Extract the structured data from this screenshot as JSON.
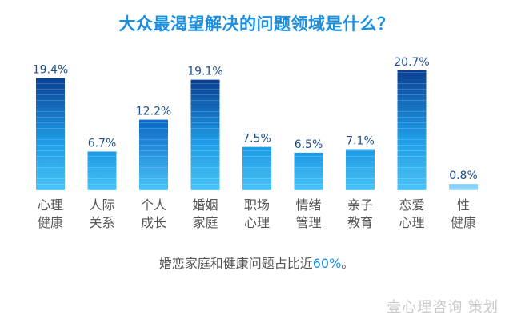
{
  "title": "大众最渴望解决的问题领域是什么？",
  "caption": {
    "prefix": "婚恋家庭和健康问题占比近",
    "highlight": "60%",
    "suffix": "。"
  },
  "watermark": "壹心理咨询  策划",
  "colors": {
    "title": "#1a8fe0",
    "bar_top_dark": "#0a3f93",
    "bar_top_medium": "#0c68c8",
    "bar_top_light": "#1c9ae6",
    "bar_bottom": "#47c3f6",
    "bar_pale_top": "#7ccdf3",
    "bar_pale_bottom": "#9ad9f7",
    "value_label": "#1f4f86",
    "category_label": "#555555"
  },
  "chart_data": {
    "type": "bar",
    "title": "大众最渴望解决的问题领域是什么？",
    "categories": [
      [
        "心理",
        "健康"
      ],
      [
        "人际",
        "关系"
      ],
      [
        "个人",
        "成长"
      ],
      [
        "婚姻",
        "家庭"
      ],
      [
        "职场",
        "心理"
      ],
      [
        "情绪",
        "管理"
      ],
      [
        "亲子",
        "教育"
      ],
      [
        "恋爱",
        "心理"
      ],
      [
        "性",
        "健康"
      ]
    ],
    "values": [
      19.4,
      6.7,
      12.2,
      19.1,
      7.5,
      6.5,
      7.1,
      20.7,
      0.8
    ],
    "value_labels": [
      "19.4%",
      "6.7%",
      "12.2%",
      "19.1%",
      "7.5%",
      "6.5%",
      "7.1%",
      "20.7%",
      "0.8%"
    ],
    "ylim": [
      0,
      20.7
    ],
    "grid": false,
    "legend": "none"
  }
}
